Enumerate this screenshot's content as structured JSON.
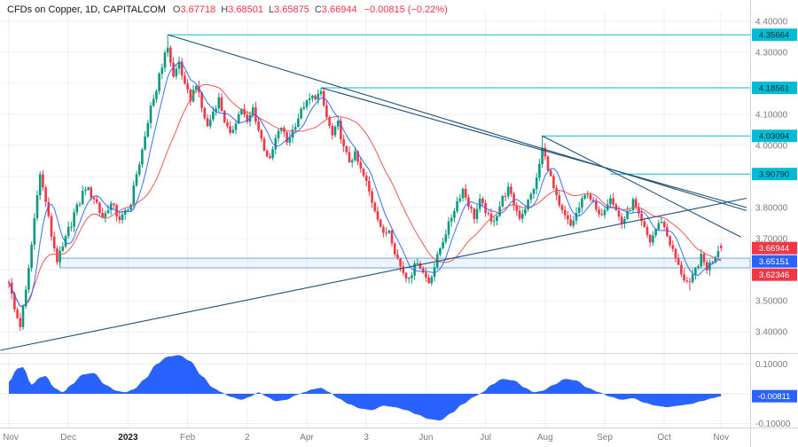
{
  "header": {
    "title": "CFDs on Copper, 1D, CAPITALCOM",
    "o_label": "O",
    "open": "3.67718",
    "h_label": "H",
    "high": "3.68501",
    "l_label": "L",
    "low": "3.65875",
    "c_label": "C",
    "close": "3.66944",
    "change": "−0.00815 (−0.22%)"
  },
  "colors": {
    "up": "#089981",
    "down": "#f23645",
    "ma_red": "#ef5350",
    "ma_blue": "#2962ff",
    "level": "#00bcd4",
    "level_text": "#0a2e33",
    "trendline": "#1f4e79",
    "histogram": "#2962ff",
    "grid": "#eceff4",
    "divider": "#d1d4dc",
    "axis_text": "#787b86",
    "zone_border": "#6fa8dc",
    "zone_fill": "rgba(111,168,220,0.12)"
  },
  "chart_data": {
    "type": "candlestick",
    "symbol": "CFDs on Copper",
    "interval": "1D",
    "exchange": "CAPITALCOM",
    "title": "CFDs on Copper, 1D, CAPITALCOM",
    "last_ohlc": {
      "open": 3.67718,
      "high": 3.68501,
      "low": 3.65875,
      "close": 3.66944,
      "change": -0.00815,
      "change_pct": -0.22
    },
    "days": 251,
    "price_axis": {
      "min": 3.4,
      "max": 4.4,
      "ticks": [
        4.4,
        4.3,
        4.1,
        4.0,
        3.8,
        3.7,
        3.5,
        3.4
      ]
    },
    "indicator_axis": {
      "ticks": [
        0.1,
        -0.1
      ]
    },
    "time_axis": {
      "labels": [
        "Nov",
        "Dec",
        "2023",
        "Feb",
        "2",
        "Apr",
        "3",
        "Jun",
        "Jul",
        "Aug",
        "Sep",
        "Oct",
        "Nov"
      ],
      "label_days": [
        0,
        21,
        42,
        63,
        84,
        105,
        126,
        147,
        168,
        189,
        210,
        231,
        251
      ]
    },
    "levels": [
      {
        "price": 4.35664,
        "from_day": 56
      },
      {
        "price": 4.18561,
        "from_day": 110
      },
      {
        "price": 4.03094,
        "from_day": 188
      },
      {
        "price": 3.9079,
        "from_day": 212
      }
    ],
    "price_badges": [
      {
        "price": 3.66944,
        "value": "3.66944",
        "color": "red",
        "name": "last-price-badge"
      },
      {
        "price": 3.65151,
        "value": "3.65151",
        "color": "blue",
        "name": "ma-value-badge"
      },
      {
        "price": 3.62346,
        "value": "3.62346",
        "color": "red",
        "name": "support-price-badge"
      }
    ],
    "indicator_badge": {
      "price": -0.00811,
      "value": "-0.00811"
    },
    "trendlines": [
      {
        "d1": 56,
        "p1": 4.357,
        "d2": 260,
        "p2": 3.79
      },
      {
        "d1": 110,
        "p1": 4.186,
        "d2": 260,
        "p2": 3.8
      },
      {
        "d1": 188,
        "p1": 4.031,
        "d2": 258,
        "p2": 3.705
      },
      {
        "d1": -3,
        "p1": 3.34,
        "d2": 260,
        "p2": 3.83
      }
    ],
    "support_zone": {
      "from_day": 18,
      "top": 3.637,
      "bottom": 3.606
    },
    "price_anchors": [
      [
        0,
        3.565
      ],
      [
        2,
        3.47
      ],
      [
        4,
        3.42
      ],
      [
        6,
        3.53
      ],
      [
        8,
        3.68
      ],
      [
        10,
        3.85
      ],
      [
        11,
        3.905
      ],
      [
        13,
        3.82
      ],
      [
        15,
        3.71
      ],
      [
        17,
        3.63
      ],
      [
        19,
        3.67
      ],
      [
        21,
        3.73
      ],
      [
        24,
        3.8
      ],
      [
        27,
        3.865
      ],
      [
        30,
        3.83
      ],
      [
        33,
        3.77
      ],
      [
        36,
        3.81
      ],
      [
        39,
        3.765
      ],
      [
        42,
        3.79
      ],
      [
        45,
        3.9
      ],
      [
        48,
        4.03
      ],
      [
        51,
        4.15
      ],
      [
        54,
        4.26
      ],
      [
        56,
        4.32
      ],
      [
        58,
        4.22
      ],
      [
        60,
        4.27
      ],
      [
        62,
        4.19
      ],
      [
        64,
        4.15
      ],
      [
        66,
        4.2
      ],
      [
        68,
        4.12
      ],
      [
        70,
        4.06
      ],
      [
        72,
        4.11
      ],
      [
        74,
        4.15
      ],
      [
        76,
        4.08
      ],
      [
        78,
        4.03
      ],
      [
        80,
        4.08
      ],
      [
        82,
        4.12
      ],
      [
        84,
        4.07
      ],
      [
        86,
        4.12
      ],
      [
        88,
        4.05
      ],
      [
        90,
        3.99
      ],
      [
        92,
        3.95
      ],
      [
        94,
        4.02
      ],
      [
        96,
        4.06
      ],
      [
        98,
        4.01
      ],
      [
        100,
        4.05
      ],
      [
        102,
        4.09
      ],
      [
        104,
        4.13
      ],
      [
        107,
        4.155
      ],
      [
        110,
        4.165
      ],
      [
        112,
        4.09
      ],
      [
        114,
        4.03
      ],
      [
        116,
        4.07
      ],
      [
        118,
        3.99
      ],
      [
        120,
        3.95
      ],
      [
        122,
        3.97
      ],
      [
        124,
        3.92
      ],
      [
        126,
        3.88
      ],
      [
        128,
        3.82
      ],
      [
        130,
        3.77
      ],
      [
        132,
        3.71
      ],
      [
        134,
        3.73
      ],
      [
        136,
        3.66
      ],
      [
        138,
        3.61
      ],
      [
        140,
        3.575
      ],
      [
        142,
        3.59
      ],
      [
        144,
        3.63
      ],
      [
        146,
        3.59
      ],
      [
        148,
        3.56
      ],
      [
        150,
        3.61
      ],
      [
        152,
        3.67
      ],
      [
        154,
        3.72
      ],
      [
        156,
        3.77
      ],
      [
        158,
        3.82
      ],
      [
        160,
        3.86
      ],
      [
        162,
        3.81
      ],
      [
        164,
        3.77
      ],
      [
        166,
        3.82
      ],
      [
        168,
        3.79
      ],
      [
        170,
        3.75
      ],
      [
        172,
        3.78
      ],
      [
        174,
        3.83
      ],
      [
        176,
        3.86
      ],
      [
        178,
        3.81
      ],
      [
        180,
        3.77
      ],
      [
        182,
        3.8
      ],
      [
        184,
        3.84
      ],
      [
        186,
        3.89
      ],
      [
        188,
        3.99
      ],
      [
        190,
        3.93
      ],
      [
        192,
        3.86
      ],
      [
        194,
        3.8
      ],
      [
        196,
        3.77
      ],
      [
        198,
        3.74
      ],
      [
        200,
        3.78
      ],
      [
        202,
        3.82
      ],
      [
        204,
        3.85
      ],
      [
        206,
        3.81
      ],
      [
        208,
        3.77
      ],
      [
        210,
        3.8
      ],
      [
        212,
        3.84
      ],
      [
        214,
        3.79
      ],
      [
        216,
        3.75
      ],
      [
        218,
        3.78
      ],
      [
        220,
        3.82
      ],
      [
        222,
        3.77
      ],
      [
        224,
        3.73
      ],
      [
        226,
        3.69
      ],
      [
        228,
        3.73
      ],
      [
        230,
        3.76
      ],
      [
        232,
        3.71
      ],
      [
        234,
        3.66
      ],
      [
        236,
        3.61
      ],
      [
        238,
        3.57
      ],
      [
        240,
        3.55
      ],
      [
        242,
        3.6
      ],
      [
        244,
        3.64
      ],
      [
        246,
        3.605
      ],
      [
        248,
        3.63
      ],
      [
        250,
        3.665
      ],
      [
        251,
        3.6694
      ]
    ],
    "indicator_anchors": [
      [
        0,
        0.04
      ],
      [
        3,
        0.085
      ],
      [
        5,
        0.09
      ],
      [
        8,
        0.03
      ],
      [
        11,
        0.055
      ],
      [
        13,
        0.06
      ],
      [
        16,
        0.02
      ],
      [
        19,
        0.005
      ],
      [
        22,
        0.03
      ],
      [
        26,
        0.065
      ],
      [
        30,
        0.07
      ],
      [
        34,
        0.03
      ],
      [
        38,
        0.01
      ],
      [
        41,
        0.005
      ],
      [
        44,
        0.015
      ],
      [
        48,
        0.05
      ],
      [
        52,
        0.1
      ],
      [
        56,
        0.125
      ],
      [
        60,
        0.13
      ],
      [
        64,
        0.11
      ],
      [
        68,
        0.06
      ],
      [
        72,
        0.02
      ],
      [
        75,
        0.005
      ],
      [
        78,
        -0.01
      ],
      [
        82,
        -0.02
      ],
      [
        85,
        -0.01
      ],
      [
        88,
        0.005
      ],
      [
        91,
        -0.01
      ],
      [
        94,
        -0.025
      ],
      [
        98,
        -0.02
      ],
      [
        101,
        -0.005
      ],
      [
        104,
        0.005
      ],
      [
        107,
        0.015
      ],
      [
        110,
        0.02
      ],
      [
        113,
        0.005
      ],
      [
        116,
        -0.015
      ],
      [
        120,
        -0.035
      ],
      [
        124,
        -0.05
      ],
      [
        128,
        -0.055
      ],
      [
        132,
        -0.04
      ],
      [
        136,
        -0.045
      ],
      [
        140,
        -0.055
      ],
      [
        144,
        -0.07
      ],
      [
        148,
        -0.085
      ],
      [
        152,
        -0.09
      ],
      [
        156,
        -0.065
      ],
      [
        160,
        -0.035
      ],
      [
        164,
        -0.01
      ],
      [
        167,
        0.005
      ],
      [
        170,
        0.03
      ],
      [
        174,
        0.05
      ],
      [
        178,
        0.045
      ],
      [
        182,
        0.02
      ],
      [
        185,
        0.005
      ],
      [
        188,
        0.01
      ],
      [
        192,
        0.03
      ],
      [
        196,
        0.05
      ],
      [
        200,
        0.045
      ],
      [
        204,
        0.02
      ],
      [
        208,
        0.005
      ],
      [
        212,
        -0.01
      ],
      [
        216,
        -0.02
      ],
      [
        220,
        -0.015
      ],
      [
        224,
        -0.03
      ],
      [
        228,
        -0.04
      ],
      [
        232,
        -0.045
      ],
      [
        236,
        -0.04
      ],
      [
        240,
        -0.035
      ],
      [
        244,
        -0.025
      ],
      [
        248,
        -0.015
      ],
      [
        251,
        -0.00811
      ]
    ],
    "candle_overrides": {
      "56": {
        "high": 4.35664
      },
      "110": {
        "high": 4.18561
      },
      "188": {
        "high": 4.03094
      },
      "240": {
        "low": 3.533
      },
      "251": {
        "open": 3.67718,
        "high": 3.68501,
        "low": 3.65875,
        "close": 3.66944
      }
    }
  }
}
